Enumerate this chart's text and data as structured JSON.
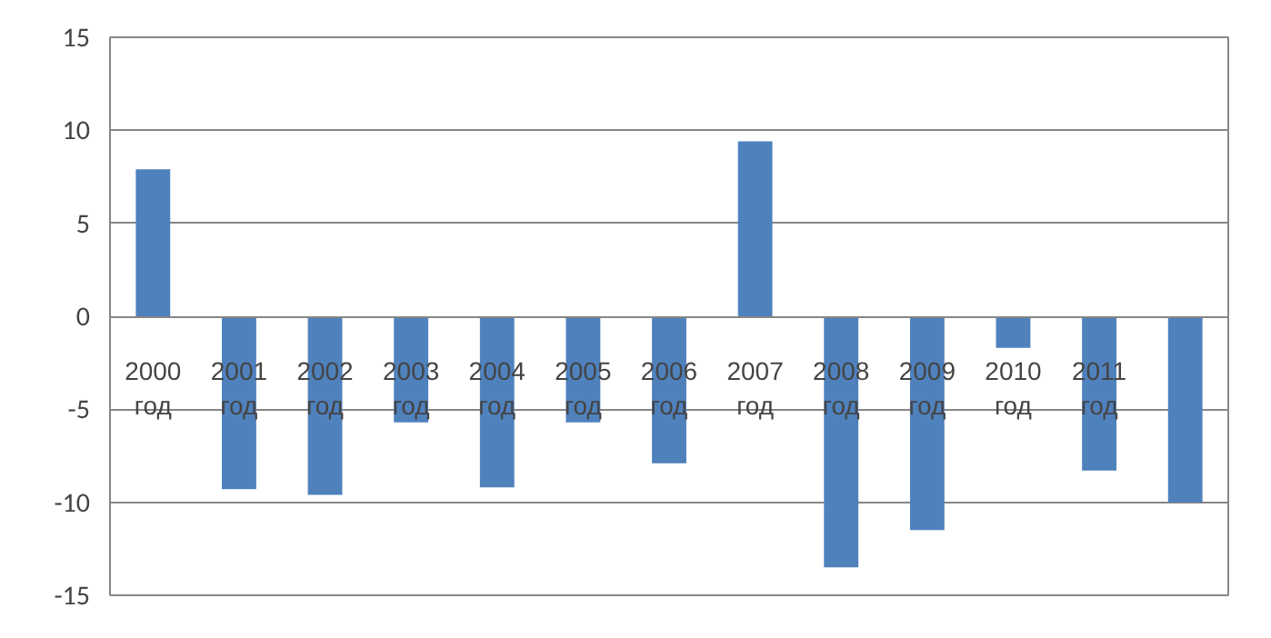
{
  "chart_data": {
    "type": "bar",
    "categories": [
      "2000 год",
      "2001 год",
      "2002 год",
      "2003 год",
      "2004 год",
      "2005 год",
      "2006 год",
      "2007 год",
      "2008 год",
      "2009 год",
      "2010 год",
      "2011 год",
      null
    ],
    "values": [
      7.9,
      -9.3,
      -9.6,
      -5.7,
      -9.2,
      -5.7,
      -7.9,
      9.4,
      -13.5,
      -11.5,
      -1.7,
      -8.3,
      -10.0
    ],
    "color": "#4f81bd",
    "ylim": [
      -15,
      15
    ],
    "yticks": [
      -15,
      -10,
      -5,
      0,
      5,
      10,
      15
    ],
    "grid": "y"
  }
}
